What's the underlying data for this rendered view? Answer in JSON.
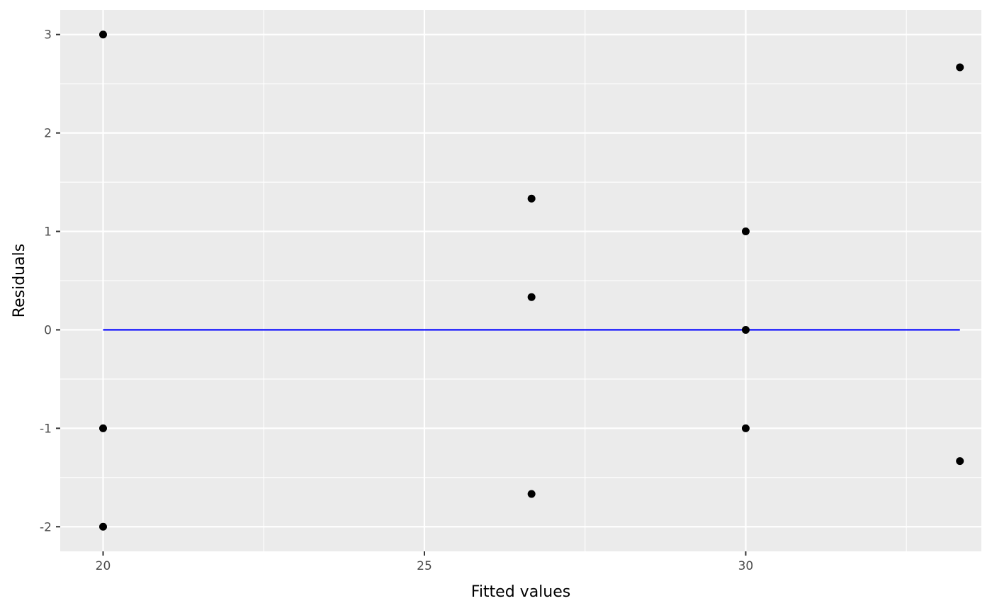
{
  "chart_data": {
    "type": "scatter",
    "title": "",
    "xlabel": "Fitted values",
    "ylabel": "Residuals",
    "xlim": [
      19.333,
      33.667
    ],
    "ylim": [
      -2.25,
      3.25
    ],
    "x_ticks": [
      20,
      25,
      30
    ],
    "x_tick_labels": [
      "20",
      "25",
      "30"
    ],
    "y_ticks": [
      3,
      2,
      1,
      0,
      -1,
      -2
    ],
    "y_tick_labels": [
      "3",
      "2",
      "1",
      "0",
      "-1",
      "-2"
    ],
    "grid": true,
    "legend": "none",
    "points": [
      {
        "x": 20,
        "y": 3
      },
      {
        "x": 20,
        "y": -1
      },
      {
        "x": 20,
        "y": -2
      },
      {
        "x": 26.667,
        "y": 1.333
      },
      {
        "x": 26.667,
        "y": 0.333
      },
      {
        "x": 26.667,
        "y": -1.667
      },
      {
        "x": 30,
        "y": 1
      },
      {
        "x": 30,
        "y": 0
      },
      {
        "x": 30,
        "y": -1
      },
      {
        "x": 33.333,
        "y": 2.667
      },
      {
        "x": 33.333,
        "y": -1.333
      }
    ],
    "reference_line": {
      "y": 0,
      "x_from": 20,
      "x_to": 33.333
    },
    "colors": {
      "panel": "#ebebeb",
      "grid": "#ffffff",
      "points": "#000000",
      "reference_line": "#0000ff"
    }
  }
}
